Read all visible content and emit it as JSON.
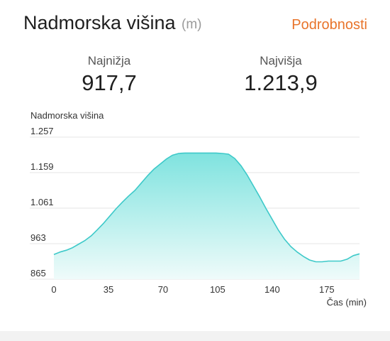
{
  "header": {
    "title": "Nadmorska višina",
    "unit": "(m)",
    "details_link": "Podrobnosti"
  },
  "stats": {
    "min_label": "Najnižja",
    "min_value": "917,7",
    "max_label": "Najvišja",
    "max_value": "1.213,9"
  },
  "colors": {
    "accent": "#e8742b",
    "line": "#3ec9c9",
    "fill_top": "#7fe3df",
    "fill_bottom": "#effbfa",
    "grid": "#e6e6e6"
  },
  "chart_data": {
    "type": "area",
    "ylabel": "Nadmorska višina",
    "xlabel": "Čas (min)",
    "y_ticks": [
      "1.257",
      "1.159",
      "1.061",
      "963",
      "865"
    ],
    "y_tick_values": [
      1257,
      1159,
      1061,
      963,
      865
    ],
    "x_ticks": [
      "0",
      "35",
      "70",
      "105",
      "140",
      "175"
    ],
    "x_tick_values": [
      0,
      35,
      70,
      105,
      140,
      175
    ],
    "xlim": [
      0,
      196
    ],
    "ylim": [
      865,
      1257
    ],
    "grid": true,
    "x": [
      0,
      4,
      8,
      12,
      16,
      20,
      24,
      28,
      32,
      36,
      40,
      44,
      48,
      52,
      56,
      60,
      64,
      68,
      72,
      76,
      80,
      84,
      88,
      92,
      96,
      100,
      104,
      108,
      112,
      116,
      120,
      124,
      128,
      132,
      136,
      140,
      144,
      148,
      152,
      156,
      160,
      164,
      168,
      172,
      176,
      180,
      184,
      188,
      192,
      196
    ],
    "values": [
      933,
      940,
      945,
      952,
      962,
      972,
      985,
      1002,
      1020,
      1040,
      1060,
      1078,
      1095,
      1110,
      1130,
      1150,
      1168,
      1182,
      1196,
      1207,
      1212,
      1213,
      1213,
      1213,
      1213,
      1213,
      1213,
      1212,
      1210,
      1198,
      1178,
      1152,
      1122,
      1092,
      1060,
      1030,
      1000,
      975,
      955,
      940,
      928,
      918,
      913,
      913,
      915,
      915,
      915,
      920,
      930,
      935
    ]
  }
}
